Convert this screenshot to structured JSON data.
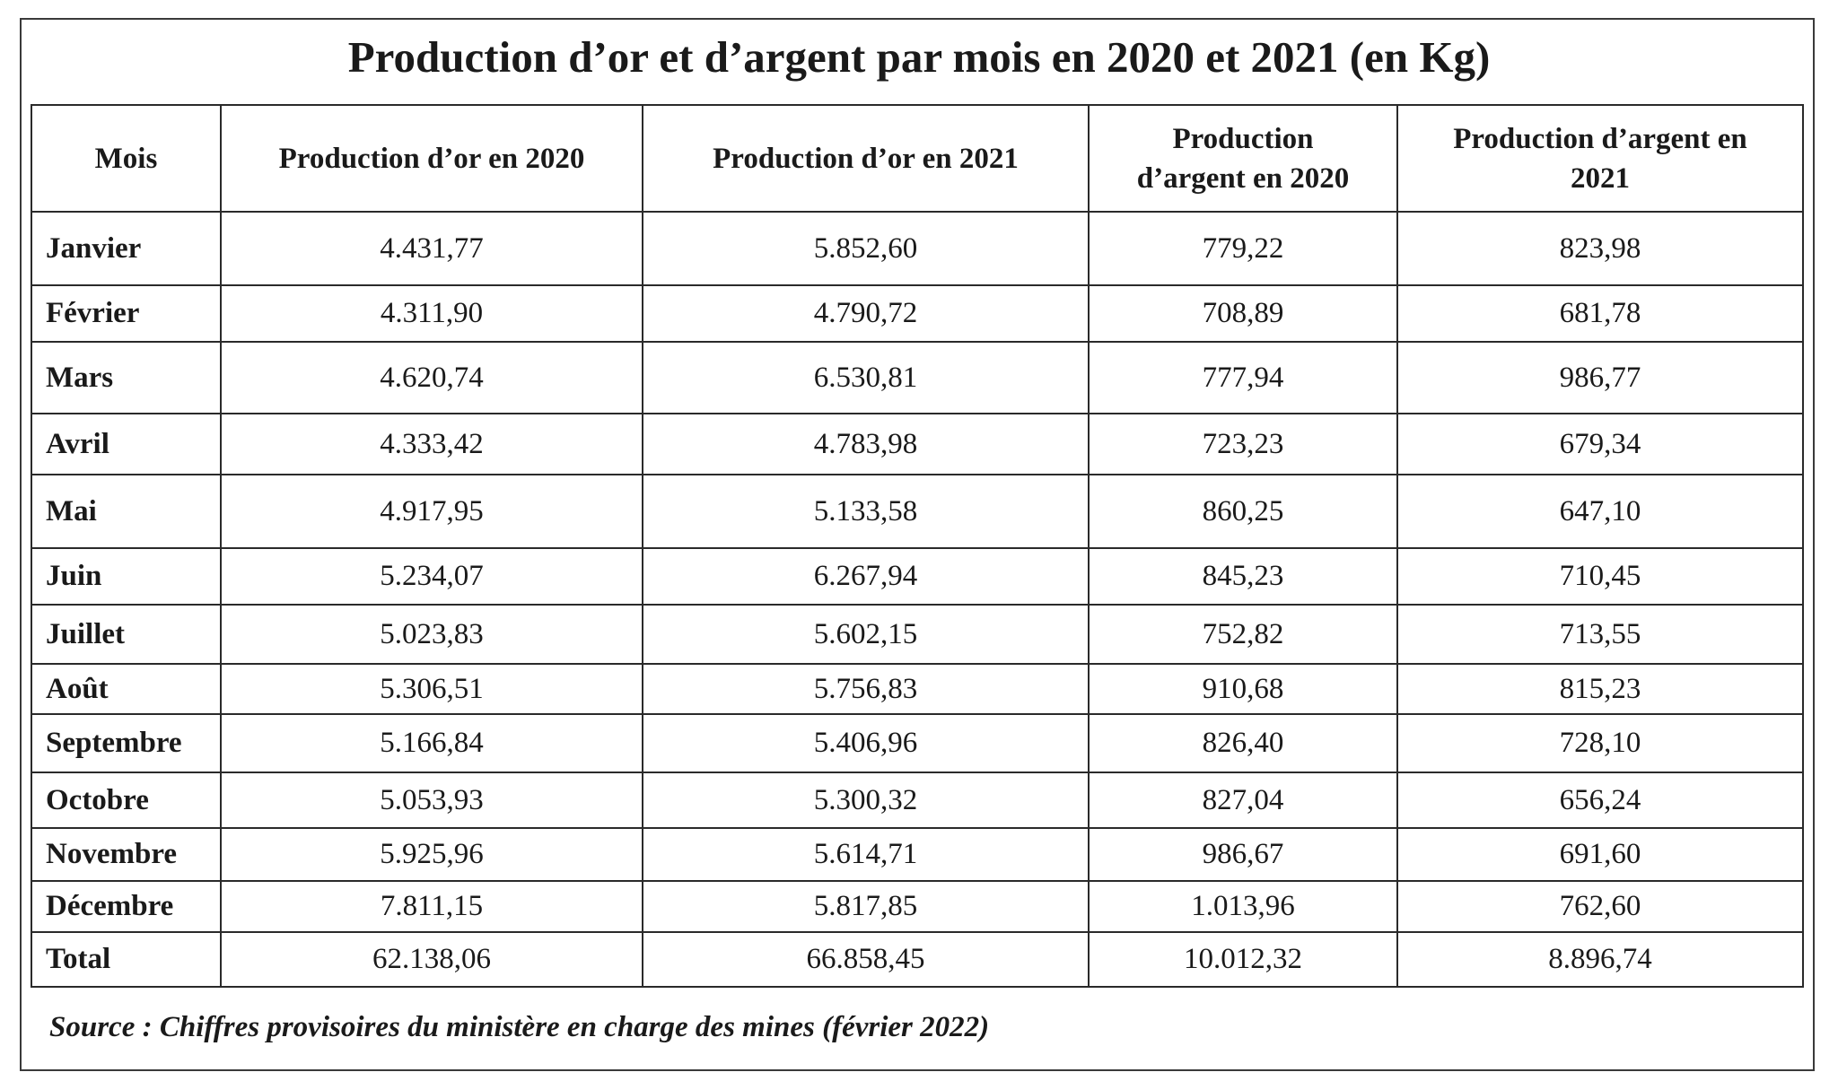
{
  "title": "Production d’or et d’argent par mois en 2020 et 2021 (en Kg)",
  "table": {
    "headers": [
      "Mois",
      "Production d’or en 2020",
      "Production d’or en 2021",
      "Production d’argent en 2020",
      "Production d’argent en 2021"
    ],
    "rows": [
      [
        "Janvier",
        "4.431,77",
        "5.852,60",
        "779,22",
        "823,98"
      ],
      [
        "Février",
        "4.311,90",
        "4.790,72",
        "708,89",
        "681,78"
      ],
      [
        "Mars",
        "4.620,74",
        "6.530,81",
        "777,94",
        "986,77"
      ],
      [
        "Avril",
        "4.333,42",
        "4.783,98",
        "723,23",
        "679,34"
      ],
      [
        "Mai",
        "4.917,95",
        "5.133,58",
        "860,25",
        "647,10"
      ],
      [
        "Juin",
        "5.234,07",
        "6.267,94",
        "845,23",
        "710,45"
      ],
      [
        "Juillet",
        "5.023,83",
        "5.602,15",
        "752,82",
        "713,55"
      ],
      [
        "Août",
        "5.306,51",
        "5.756,83",
        "910,68",
        "815,23"
      ],
      [
        "Septembre",
        "5.166,84",
        "5.406,96",
        "826,40",
        "728,10"
      ],
      [
        "Octobre",
        "5.053,93",
        "5.300,32",
        "827,04",
        "656,24"
      ],
      [
        "Novembre",
        "5.925,96",
        "5.614,71",
        "986,67",
        "691,60"
      ],
      [
        "Décembre",
        "7.811,15",
        "5.817,85",
        "1.013,96",
        "762,60"
      ],
      [
        "Total",
        "62.138,06",
        "66.858,45",
        "10.012,32",
        "8.896,74"
      ]
    ]
  },
  "source": "Source : Chiffres provisoires du ministère en charge des mines (février 2022)"
}
